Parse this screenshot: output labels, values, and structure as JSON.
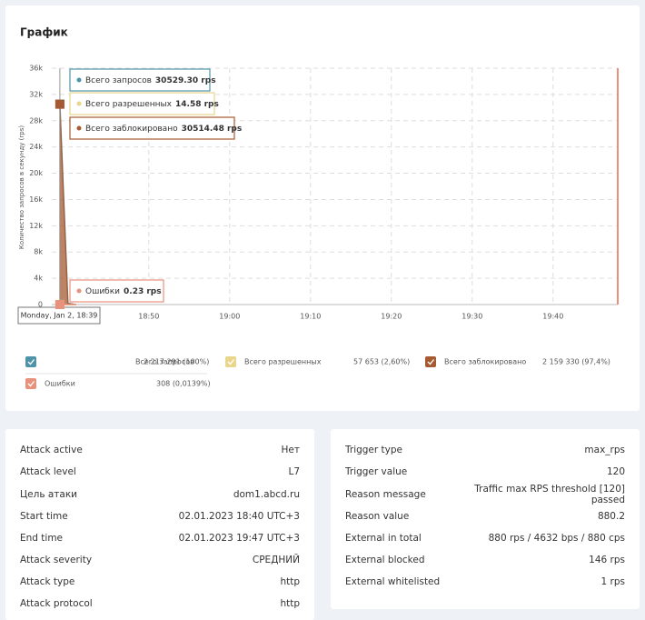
{
  "title": "График",
  "chart_data": {
    "type": "area",
    "ylabel": "Количество запросов в секунду (rps)",
    "annotation": "Monday, Jan 2, 18:39",
    "x": [
      "18:39",
      "18:40",
      "18:41"
    ],
    "xlim": [
      "18:38",
      "19:48"
    ],
    "xticks": [
      "18:50",
      "19:00",
      "19:10",
      "19:20",
      "19:30",
      "19:40"
    ],
    "ylim": [
      0,
      36000
    ],
    "yticks": [
      0,
      {
        "value": 4000,
        "label": "4k"
      },
      {
        "value": 8000,
        "label": "8k"
      },
      {
        "value": 12000,
        "label": "12k"
      },
      {
        "value": 16000,
        "label": "16k"
      },
      {
        "value": 20000,
        "label": "20k"
      },
      {
        "value": 24000,
        "label": "24k"
      },
      {
        "value": 28000,
        "label": "28k"
      },
      {
        "value": 32000,
        "label": "32k"
      },
      {
        "value": 36000,
        "label": "36k"
      }
    ],
    "grid": true,
    "series": [
      {
        "name": "Всего запросов",
        "color": "#4f93a8",
        "kind": "line",
        "values": [
          30529.3,
          200,
          0
        ],
        "value_labels": [
          "30529.30 rps",
          null,
          null
        ],
        "total": "2 217 291 (100%)"
      },
      {
        "name": "Всего разрешенных",
        "color": "#e9d68a",
        "kind": "line",
        "values": [
          14.58,
          0,
          0
        ],
        "value_labels": [
          "14.58 rps",
          null,
          null
        ],
        "total": "57 653 (2,60%)"
      },
      {
        "name": "Всего заблокировано",
        "color": "#a65a32",
        "kind": "area",
        "values": [
          30514.48,
          150,
          0
        ],
        "value_labels": [
          "30514.48 rps",
          null,
          null
        ],
        "total": "2 159 330 (97,4%)"
      },
      {
        "name": "Ошибки",
        "color": "#e8917c",
        "kind": "line",
        "values": [
          0.23,
          0,
          0
        ],
        "value_labels": [
          "0.23 rps",
          null,
          null
        ],
        "total": "308 (0,0139%)"
      }
    ]
  },
  "panels": [
    {
      "rows": [
        {
          "label": "Attack active",
          "value": "Нет"
        },
        {
          "label": "Attack level",
          "value": "L7"
        },
        {
          "label": "Цель атаки",
          "value": "dom1.abcd.ru"
        },
        {
          "label": "Start time",
          "value": "02.01.2023 18:40 UTC+3"
        },
        {
          "label": "End time",
          "value": "02.01.2023 19:47 UTC+3"
        },
        {
          "label": "Attack severity",
          "value": "СРЕДНИЙ"
        },
        {
          "label": "Attack type",
          "value": "http"
        },
        {
          "label": "Attack protocol",
          "value": "http"
        }
      ]
    },
    {
      "rows": [
        {
          "label": "Trigger type",
          "value": "max_rps"
        },
        {
          "label": "Trigger value",
          "value": "120"
        },
        {
          "label": "Reason message",
          "value": "Traffic max RPS threshold [120] passed"
        },
        {
          "label": "Reason value",
          "value": "880.2"
        },
        {
          "label": "External in total",
          "value": "880 rps / 4632 bps / 880 cps"
        },
        {
          "label": "External blocked",
          "value": "146 rps"
        },
        {
          "label": "External whitelisted",
          "value": "1 rps"
        }
      ]
    }
  ]
}
